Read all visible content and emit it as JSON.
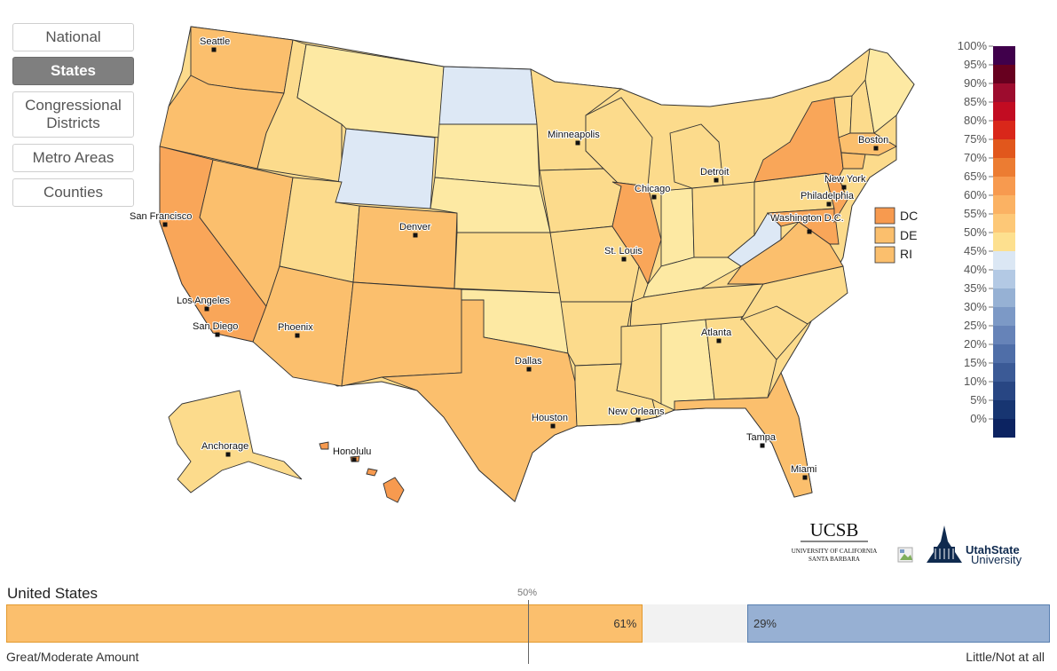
{
  "nav": {
    "buttons": [
      {
        "label": "National",
        "active": false
      },
      {
        "label": "States",
        "active": true
      },
      {
        "label": "Congressional Districts",
        "active": false
      },
      {
        "label": "Metro Areas",
        "active": false
      },
      {
        "label": "Counties",
        "active": false
      }
    ]
  },
  "map": {
    "small_states": [
      {
        "label": "DC",
        "color": "#f79a4f"
      },
      {
        "label": "DE",
        "color": "#fbbf6d"
      },
      {
        "label": "RI",
        "color": "#fbbf6d"
      }
    ],
    "cities": [
      "Seattle",
      "Minneapolis",
      "Boston",
      "Detroit",
      "New York",
      "Chicago",
      "Philadelphia",
      "San Francisco",
      "Washington D.C.",
      "Denver",
      "St. Louis",
      "Los Angeles",
      "San Diego",
      "Phoenix",
      "Atlanta",
      "Dallas",
      "New Orleans",
      "Houston",
      "Tampa",
      "Anchorage",
      "Honolulu",
      "Miami"
    ],
    "palette": {
      "bluish": "#dde8f5",
      "light_yellow": "#fde9a3",
      "yellow": "#fcdb8c",
      "orange_light": "#fbbf6d",
      "orange": "#f9a659",
      "orange_dark": "#f79a4f"
    }
  },
  "legend": {
    "ticks": [
      "100%",
      "95%",
      "90%",
      "85%",
      "80%",
      "75%",
      "70%",
      "65%",
      "60%",
      "55%",
      "50%",
      "45%",
      "40%",
      "35%",
      "30%",
      "25%",
      "20%",
      "15%",
      "10%",
      "5%",
      "0%"
    ],
    "colors": [
      "#40004b",
      "#67001f",
      "#9d0c2e",
      "#c20c22",
      "#d9271a",
      "#e1571c",
      "#ec7c32",
      "#f79a4f",
      "#fbb263",
      "#fdc877",
      "#fde08f",
      "#dbe7f4",
      "#b3c9e4",
      "#96b1d4",
      "#7c99c6",
      "#6683b8",
      "#4f6ea8",
      "#3b5a96",
      "#284683",
      "#173571",
      "#0c2361"
    ]
  },
  "logos": {
    "ucsb": "UCSB",
    "ucsb_sub1": "UNIVERSITY OF CALIFORNIA",
    "ucsb_sub2": "SANTA BARBARA",
    "usu1": "UtahState",
    "usu2": "University"
  },
  "summary": {
    "title": "United States",
    "midpoint_label": "50%",
    "left_pct": 61,
    "right_pct": 29,
    "left_value": "61%",
    "right_value": "29%",
    "left_label": "Great/Moderate Amount",
    "right_label": "Little/Not at all"
  }
}
